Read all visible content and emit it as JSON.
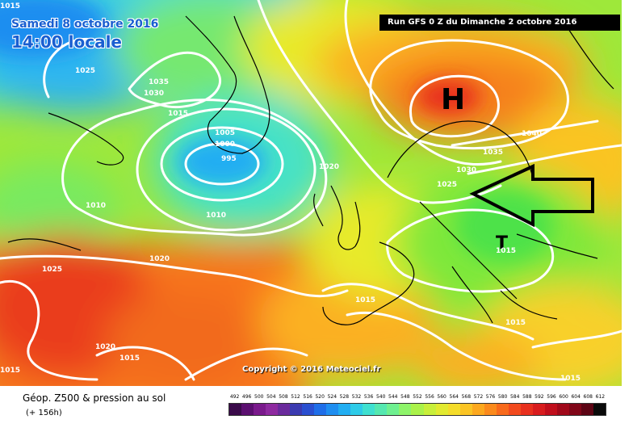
{
  "header": {
    "date": "Samedi 8 octobre 2016",
    "time": "14:00 locale",
    "run": "Run GFS 0 Z du Dimanche 2 octobre 2016"
  },
  "map": {
    "high_label": "H",
    "low_label": "T",
    "isobars": [
      "1025",
      "1035",
      "1030",
      "1015",
      "1005",
      "1000",
      "995",
      "1010",
      "1010",
      "1020",
      "1025",
      "1020",
      "1015",
      "1015",
      "1020",
      "1015",
      "1040",
      "1035",
      "1030",
      "1025",
      "1015",
      "1015",
      "1015",
      "1015"
    ],
    "copyright": "Copyright © 2016 Meteociel.fr"
  },
  "footer": {
    "title": "Géop. Z500 & pression au sol",
    "subtitle": "(+ 156h)",
    "scale_labels": [
      "492",
      "496",
      "500",
      "504",
      "508",
      "512",
      "516",
      "520",
      "524",
      "528",
      "532",
      "536",
      "540",
      "544",
      "548",
      "552",
      "556",
      "560",
      "564",
      "568",
      "572",
      "576",
      "580",
      "584",
      "588",
      "592",
      "596",
      "600",
      "604",
      "608",
      "612"
    ],
    "scale_colors": [
      "#3a0a4a",
      "#5b0f70",
      "#7a1a8c",
      "#8e2aa0",
      "#6a2a9c",
      "#3b3ab0",
      "#2a4fd0",
      "#1f6ee8",
      "#1f8ef0",
      "#22aef2",
      "#2ecbe8",
      "#3fe0d0",
      "#55e8b0",
      "#6ff090",
      "#8ef46a",
      "#aaf24a",
      "#c8ef3a",
      "#e2ea30",
      "#f4dc2a",
      "#fac424",
      "#fca81e",
      "#fb8a1c",
      "#f86a1c",
      "#f24a1e",
      "#e8301e",
      "#d81c1e",
      "#c00e1c",
      "#a0081a",
      "#800618",
      "#5c0414",
      "#0a0a0a"
    ]
  }
}
